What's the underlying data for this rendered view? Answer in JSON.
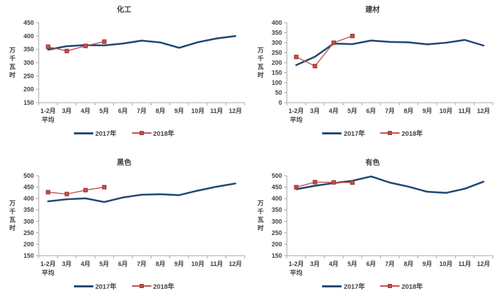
{
  "page": {
    "background": "#ffffff"
  },
  "colors": {
    "series_2017": "#1f4973",
    "series_2018": "#c0504d",
    "series_2018_marker_border": "#963634",
    "axis": "#a6a6a6",
    "text": "#404040"
  },
  "chart_data": [
    {
      "type": "line",
      "title": "化工",
      "ylabel": "万千瓦时",
      "xlabel": "",
      "ylim": [
        150,
        450
      ],
      "ystep": 50,
      "grid": false,
      "legend_position": "bottom",
      "categories": [
        "1-2月",
        "3月",
        "4月",
        "5月",
        "6月",
        "7月",
        "8月",
        "9月",
        "10月",
        "11月",
        "12月"
      ],
      "first_category_line2": "平均",
      "series": [
        {
          "name": "2017年",
          "values": [
            349,
            362,
            366,
            365,
            372,
            383,
            376,
            356,
            377,
            391,
            400
          ]
        },
        {
          "name": "2018年",
          "values": [
            360,
            344,
            363,
            379
          ]
        }
      ]
    },
    {
      "type": "line",
      "title": "建材",
      "ylabel": "万千瓦时",
      "xlabel": "",
      "ylim": [
        0,
        400
      ],
      "ystep": 50,
      "grid": false,
      "legend_position": "bottom",
      "categories": [
        "1-2月",
        "3月",
        "4月",
        "5月",
        "6月",
        "7月",
        "8月",
        "9月",
        "10月",
        "11月",
        "12月"
      ],
      "first_category_line2": "平均",
      "series": [
        {
          "name": "2017年",
          "values": [
            188,
            230,
            296,
            293,
            311,
            304,
            302,
            292,
            300,
            314,
            286
          ]
        },
        {
          "name": "2018年",
          "values": [
            229,
            183,
            300,
            334
          ]
        }
      ]
    },
    {
      "type": "line",
      "title": "黑色",
      "ylabel": "万千瓦时",
      "xlabel": "",
      "ylim": [
        150,
        500
      ],
      "ystep": 50,
      "grid": false,
      "legend_position": "bottom",
      "categories": [
        "1-2月",
        "3月",
        "4月",
        "5月",
        "6月",
        "7月",
        "8月",
        "9月",
        "10月",
        "11月",
        "12月"
      ],
      "first_category_line2": "平均",
      "series": [
        {
          "name": "2017年",
          "values": [
            388,
            397,
            401,
            385,
            405,
            417,
            419,
            415,
            435,
            452,
            466
          ]
        },
        {
          "name": "2018年",
          "values": [
            428,
            420,
            437,
            450
          ]
        }
      ]
    },
    {
      "type": "line",
      "title": "有色",
      "ylabel": "万千瓦时",
      "xlabel": "",
      "ylim": [
        150,
        500
      ],
      "ystep": 50,
      "grid": false,
      "legend_position": "bottom",
      "categories": [
        "1-2月",
        "3月",
        "4月",
        "5月",
        "6月",
        "7月",
        "8月",
        "9月",
        "10月",
        "11月",
        "12月"
      ],
      "first_category_line2": "平均",
      "series": [
        {
          "name": "2017年",
          "values": [
            441,
            456,
            468,
            478,
            497,
            470,
            452,
            430,
            425,
            443,
            474
          ]
        },
        {
          "name": "2018年",
          "values": [
            450,
            472,
            471,
            470
          ]
        }
      ]
    }
  ]
}
